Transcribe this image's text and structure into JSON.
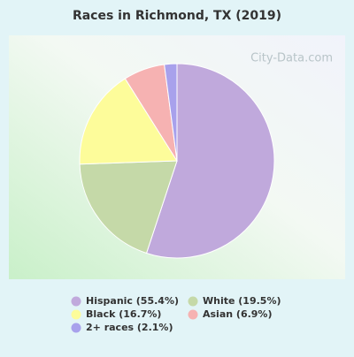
{
  "chart_data": {
    "type": "pie",
    "title": "Races in Richmond, TX (2019)",
    "watermark": "City-Data.com",
    "categories": [
      "Hispanic (55.4%)",
      "White (19.5%)",
      "Black (16.7%)",
      "Asian (6.9%)",
      "2+ races (2.1%)"
    ],
    "values": [
      55.4,
      19.5,
      16.7,
      6.9,
      2.1
    ],
    "colors": [
      "#c0a9dc",
      "#c5d9a8",
      "#fdfc9a",
      "#f6b2b2",
      "#a8a1ec"
    ]
  }
}
